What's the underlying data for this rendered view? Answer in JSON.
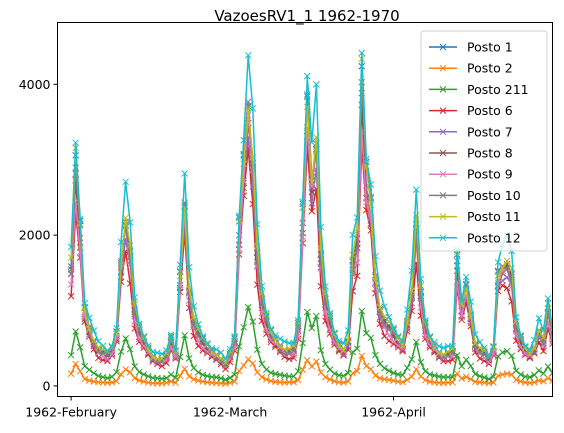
{
  "chart_data": {
    "type": "line",
    "title": "VazoesRV1_1 1962-1970",
    "xlabel": "",
    "ylabel": "",
    "x_tick_labels": [
      "1962-February",
      "1962-March",
      "1962-April"
    ],
    "y_ticks": [
      0,
      2000,
      4000
    ],
    "ylim": [
      -140,
      4820
    ],
    "xlim": [
      -3,
      106
    ],
    "grid": false,
    "legend_position": "top-right",
    "marker": "x",
    "series": [
      {
        "name": "Posto 1",
        "color": "#1f77b4",
        "scale": 0.88
      },
      {
        "name": "Posto 2",
        "color": "#ff7f0e",
        "scale": 0.085
      },
      {
        "name": "Posto 211",
        "color": "#2ca02c",
        "scale": 0.23
      },
      {
        "name": "Posto 6",
        "color": "#d62728",
        "scale": 0.7
      },
      {
        "name": "Posto 7",
        "color": "#9467bd",
        "scale": 0.8
      },
      {
        "name": "Posto 8",
        "color": "#8c564b",
        "scale": 0.82
      },
      {
        "name": "Posto 9",
        "color": "#e377c2",
        "scale": 0.78
      },
      {
        "name": "Posto 10",
        "color": "#7f7f7f",
        "scale": 0.86
      },
      {
        "name": "Posto 11",
        "color": "#bcbd22",
        "scale": 0.9
      },
      {
        "name": "Posto 12",
        "color": "#17becf",
        "scale": 1.0
      }
    ],
    "reference_series": [
      1800,
      3320,
      2350,
      1150,
      900,
      700,
      560,
      520,
      480,
      560,
      800,
      1900,
      2580,
      2050,
      1150,
      850,
      700,
      560,
      450,
      420,
      400,
      460,
      700,
      500,
      1680,
      2800,
      1500,
      1000,
      800,
      680,
      600,
      520,
      480,
      420,
      340,
      480,
      680,
      2400,
      3400,
      4350,
      3500,
      2030,
      1300,
      1000,
      800,
      700,
      620,
      560,
      540,
      560,
      900,
      2600,
      4280,
      3200,
      3800,
      2000,
      1300,
      1000,
      750,
      620,
      560,
      700,
      1900,
      2200,
      4580,
      3200,
      2780,
      1700,
      1200,
      1000,
      900,
      800,
      700,
      620,
      1000,
      1450,
      2470,
      1400,
      900,
      700,
      600,
      520,
      480,
      500,
      520,
      1880,
      1200,
      1500,
      1100,
      650,
      550,
      500,
      420,
      560,
      1700,
      1850,
      1900,
      1700,
      900,
      700,
      560,
      500,
      600,
      850,
      700,
      1150,
      800
    ]
  }
}
